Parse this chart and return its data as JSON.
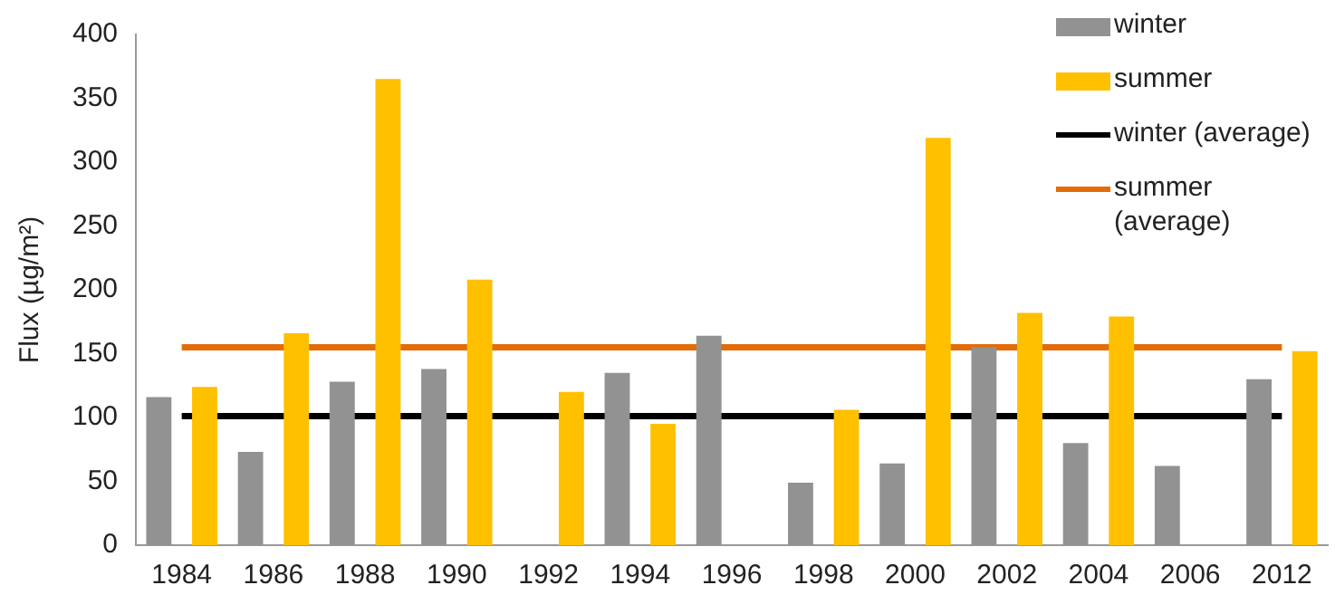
{
  "chart_data": {
    "type": "bar",
    "ylabel": "Flux (µg/m²)",
    "categories": [
      "1984",
      "1986",
      "1988",
      "1990",
      "1992",
      "1994",
      "1996",
      "1998",
      "2000",
      "2002",
      "2004",
      "2006",
      "2012"
    ],
    "series": [
      {
        "name": "winter",
        "color": "#929292",
        "values": [
          116,
          73,
          128,
          138,
          null,
          135,
          164,
          49,
          64,
          155,
          80,
          62,
          130
        ]
      },
      {
        "name": "summer",
        "color": "#ffc000",
        "values": [
          124,
          166,
          365,
          208,
          120,
          95,
          null,
          106,
          319,
          182,
          179,
          null,
          152
        ]
      },
      {
        "name": "winter (average)",
        "type": "line",
        "color": "#000000",
        "values": [
          101,
          101,
          101,
          101,
          101,
          101,
          101,
          101,
          101,
          101,
          101,
          101,
          101
        ]
      },
      {
        "name": "summer (average)",
        "type": "line",
        "color": "#e36c09",
        "values": [
          155,
          155,
          155,
          155,
          155,
          155,
          155,
          155,
          155,
          155,
          155,
          155,
          155
        ]
      }
    ],
    "ylim": [
      0,
      400
    ],
    "yticks": [
      0,
      50,
      100,
      150,
      200,
      250,
      300,
      350,
      400
    ],
    "grid": false,
    "legend": "top right"
  }
}
